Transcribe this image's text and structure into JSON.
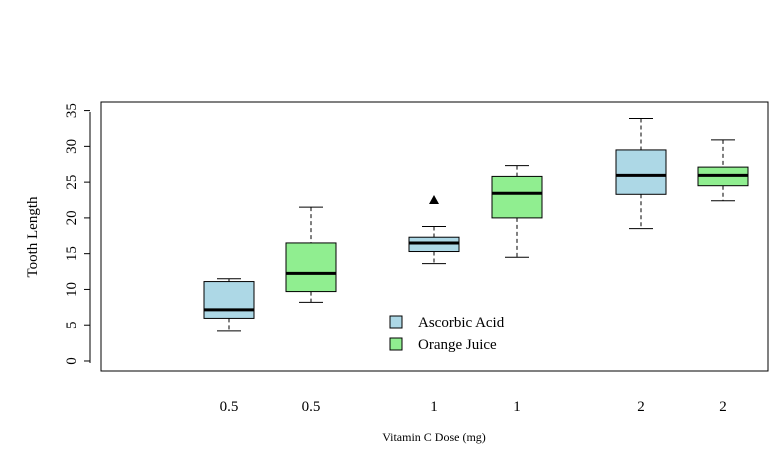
{
  "chart_data": {
    "type": "boxplot",
    "title": "",
    "xlabel": "Vitamin C Dose (mg)",
    "ylabel": "Tooth Length",
    "ylim": [
      -1.4,
      36.2
    ],
    "yticks": [
      0,
      5,
      10,
      15,
      20,
      25,
      30,
      35
    ],
    "grid": false,
    "legend_placement": "bottom-center",
    "boxes": [
      {
        "label": "0.5",
        "series": "Ascorbic Acid",
        "whisker_low": 4.2,
        "q1": 5.95,
        "median": 7.15,
        "q3": 11.1,
        "whisker_high": 11.5,
        "outliers": []
      },
      {
        "label": "0.5",
        "series": "Orange Juice",
        "whisker_low": 8.2,
        "q1": 9.7,
        "median": 12.25,
        "q3": 16.5,
        "whisker_high": 21.5,
        "outliers": []
      },
      {
        "label": "1",
        "series": "Ascorbic Acid",
        "whisker_low": 13.6,
        "q1": 15.3,
        "median": 16.5,
        "q3": 17.3,
        "whisker_high": 18.8,
        "outliers": [
          22.5
        ]
      },
      {
        "label": "1",
        "series": "Orange Juice",
        "whisker_low": 14.5,
        "q1": 20.0,
        "median": 23.45,
        "q3": 25.8,
        "whisker_high": 27.3,
        "outliers": []
      },
      {
        "label": "2",
        "series": "Ascorbic Acid",
        "whisker_low": 18.5,
        "q1": 23.3,
        "median": 25.95,
        "q3": 29.5,
        "whisker_high": 33.9,
        "outliers": []
      },
      {
        "label": "2",
        "series": "Orange Juice",
        "whisker_low": 22.4,
        "q1": 24.5,
        "median": 25.95,
        "q3": 27.1,
        "whisker_high": 30.9,
        "outliers": []
      }
    ],
    "legend": [
      {
        "name": "Ascorbic Acid",
        "color": "#add8e6"
      },
      {
        "name": "Orange Juice",
        "color": "#90ee90"
      }
    ]
  }
}
